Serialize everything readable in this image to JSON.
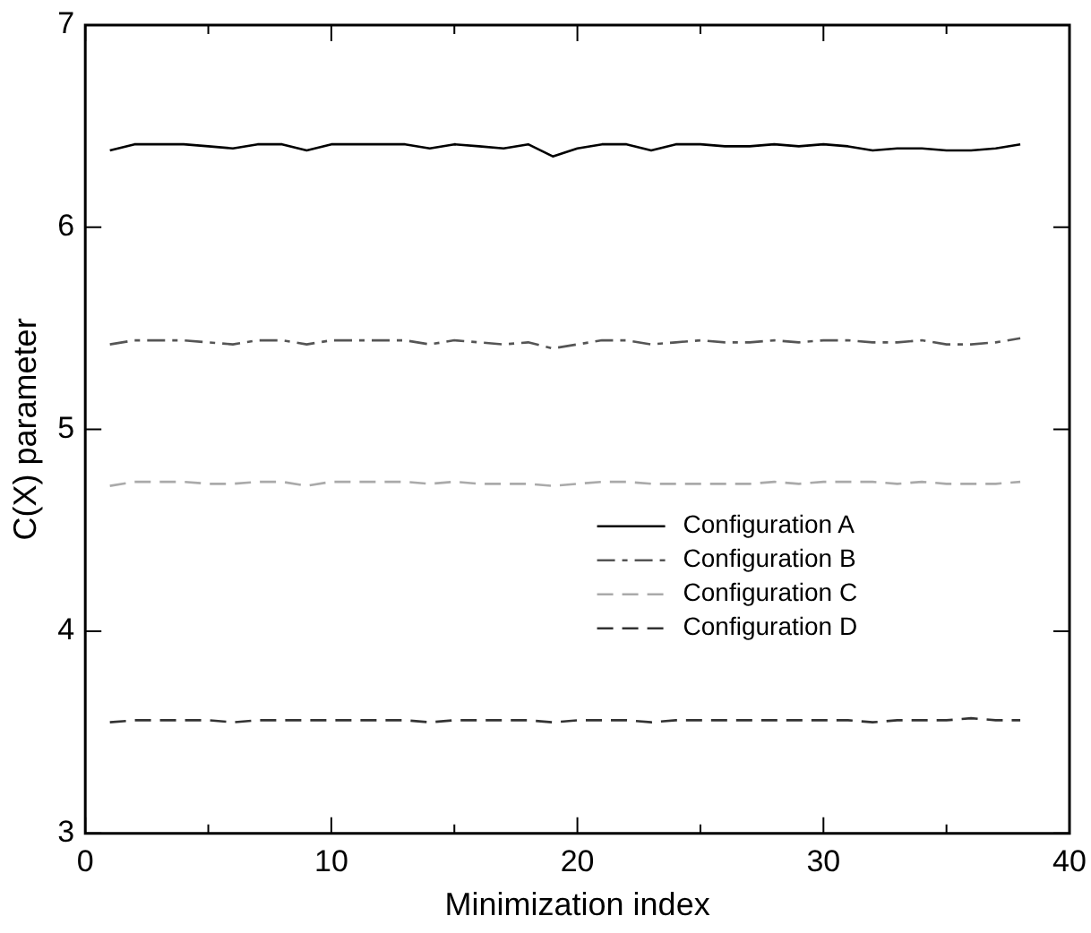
{
  "chart_data": {
    "type": "line",
    "xlabel": "Minimization index",
    "ylabel": "C(X) parameter",
    "x": [
      1,
      2,
      3,
      4,
      5,
      6,
      7,
      8,
      9,
      10,
      11,
      12,
      13,
      14,
      15,
      16,
      17,
      18,
      19,
      20,
      21,
      22,
      23,
      24,
      25,
      26,
      27,
      28,
      29,
      30,
      31,
      32,
      33,
      34,
      35,
      36,
      37,
      38
    ],
    "series": [
      {
        "name": "Configuration A",
        "color": "#000000",
        "line_style": "solid",
        "values": [
          6.38,
          6.41,
          6.41,
          6.41,
          6.4,
          6.39,
          6.41,
          6.41,
          6.38,
          6.41,
          6.41,
          6.41,
          6.41,
          6.39,
          6.41,
          6.4,
          6.39,
          6.41,
          6.35,
          6.39,
          6.41,
          6.41,
          6.38,
          6.41,
          6.41,
          6.4,
          6.4,
          6.41,
          6.4,
          6.41,
          6.4,
          6.38,
          6.39,
          6.39,
          6.38,
          6.38,
          6.39,
          6.41
        ]
      },
      {
        "name": "Configuration B",
        "color": "#555555",
        "line_style": "dashdot",
        "values": [
          5.42,
          5.44,
          5.44,
          5.44,
          5.43,
          5.42,
          5.44,
          5.44,
          5.42,
          5.44,
          5.44,
          5.44,
          5.44,
          5.42,
          5.44,
          5.43,
          5.42,
          5.43,
          5.4,
          5.42,
          5.44,
          5.44,
          5.42,
          5.43,
          5.44,
          5.43,
          5.43,
          5.44,
          5.43,
          5.44,
          5.44,
          5.43,
          5.43,
          5.44,
          5.42,
          5.42,
          5.43,
          5.45
        ]
      },
      {
        "name": "Configuration C",
        "color": "#aaaaaa",
        "line_style": "dashed",
        "values": [
          4.72,
          4.74,
          4.74,
          4.74,
          4.73,
          4.73,
          4.74,
          4.74,
          4.72,
          4.74,
          4.74,
          4.74,
          4.74,
          4.73,
          4.74,
          4.73,
          4.73,
          4.73,
          4.72,
          4.73,
          4.74,
          4.74,
          4.73,
          4.73,
          4.73,
          4.73,
          4.73,
          4.74,
          4.73,
          4.74,
          4.74,
          4.74,
          4.73,
          4.74,
          4.73,
          4.73,
          4.73,
          4.74
        ]
      },
      {
        "name": "Configuration D",
        "color": "#333333",
        "line_style": "dashed",
        "values": [
          3.55,
          3.56,
          3.56,
          3.56,
          3.56,
          3.55,
          3.56,
          3.56,
          3.56,
          3.56,
          3.56,
          3.56,
          3.56,
          3.55,
          3.56,
          3.56,
          3.56,
          3.56,
          3.55,
          3.56,
          3.56,
          3.56,
          3.55,
          3.56,
          3.56,
          3.56,
          3.56,
          3.56,
          3.56,
          3.56,
          3.56,
          3.55,
          3.56,
          3.56,
          3.56,
          3.57,
          3.56,
          3.56
        ]
      }
    ],
    "xlim": [
      0,
      40
    ],
    "xticks": [
      0,
      {
        "value": 5,
        "label": null
      },
      10,
      {
        "value": 15,
        "label": null
      },
      20,
      {
        "value": 25,
        "label": null
      },
      30,
      {
        "value": 35,
        "label": null
      },
      40
    ],
    "ylim": [
      3,
      7
    ],
    "yticks": [
      3,
      4,
      5,
      6,
      7
    ],
    "grid": false,
    "legend": "right",
    "marker": "none"
  }
}
